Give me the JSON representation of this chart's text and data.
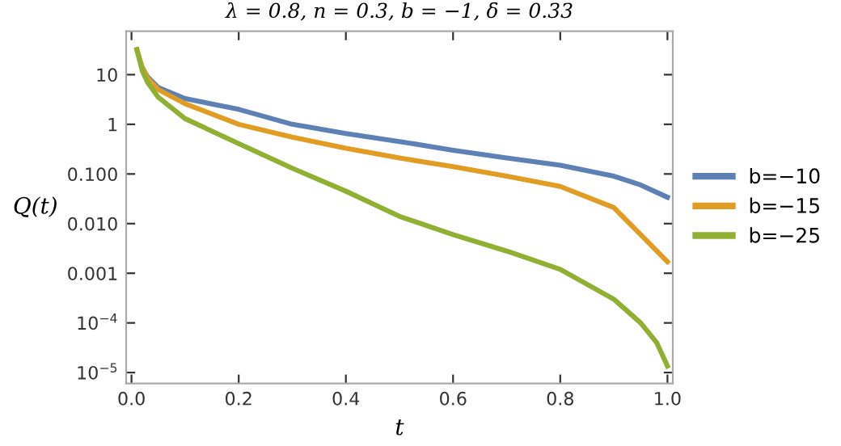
{
  "chart_data": {
    "type": "line",
    "title": "λ = 0.8, n = 0.3, b = −1, δ = 0.33",
    "xlabel": "t",
    "ylabel": "Q(t)",
    "log": "y",
    "xlim": [
      -0.01,
      1.01
    ],
    "ylim": [
      6e-06,
      75
    ],
    "xticks": [
      {
        "value": 0,
        "label": "0.0"
      },
      {
        "value": 0.2,
        "label": "0.2"
      },
      {
        "value": 0.4,
        "label": "0.4"
      },
      {
        "value": 0.6,
        "label": "0.6"
      },
      {
        "value": 0.8,
        "label": "0.8"
      },
      {
        "value": 1,
        "label": "1.0"
      }
    ],
    "yticks": [
      {
        "value": 10,
        "label": "10"
      },
      {
        "value": 1,
        "label": "1"
      },
      {
        "value": 0.1,
        "label": "0.100"
      },
      {
        "value": 0.01,
        "label": "0.010"
      },
      {
        "value": 0.001,
        "label": "0.001"
      },
      {
        "value": 0.0001,
        "label": "10$^{−4}$"
      },
      {
        "value": 1e-05,
        "label": "10$^{−5}$"
      }
    ],
    "grid": false,
    "legend": "right",
    "marker": "none",
    "line_style": "solid",
    "series": [
      {
        "name": "b=−10",
        "color": "#5e81b5",
        "x": [
          0.02,
          0.03,
          0.05,
          0.1,
          0.2,
          0.3,
          0.4,
          0.5,
          0.6,
          0.7,
          0.8,
          0.9,
          0.95,
          1.0
        ],
        "values": [
          14,
          9,
          5.5,
          3.3,
          2,
          1.0,
          0.65,
          0.45,
          0.3,
          0.21,
          0.15,
          0.09,
          0.06,
          0.034
        ]
      },
      {
        "name": "b=−15",
        "color": "#e19c24",
        "x": [
          0.01,
          0.02,
          0.03,
          0.05,
          0.1,
          0.2,
          0.3,
          0.4,
          0.5,
          0.6,
          0.7,
          0.8,
          0.9,
          0.95,
          1.0
        ],
        "values": [
          32,
          14,
          8.5,
          5,
          2.6,
          1.0,
          0.55,
          0.33,
          0.21,
          0.14,
          0.09,
          0.056,
          0.021,
          0.006,
          0.0017
        ]
      },
      {
        "name": "b=−25",
        "color": "#8fb032",
        "x": [
          0.01,
          0.02,
          0.03,
          0.05,
          0.1,
          0.2,
          0.3,
          0.4,
          0.5,
          0.6,
          0.7,
          0.8,
          0.9,
          0.95,
          0.98,
          1.0
        ],
        "values": [
          32,
          12,
          7,
          3.5,
          1.3,
          0.41,
          0.13,
          0.045,
          0.014,
          0.006,
          0.0028,
          0.0012,
          0.0003,
          0.0001,
          4e-05,
          1.35e-05
        ]
      }
    ]
  }
}
